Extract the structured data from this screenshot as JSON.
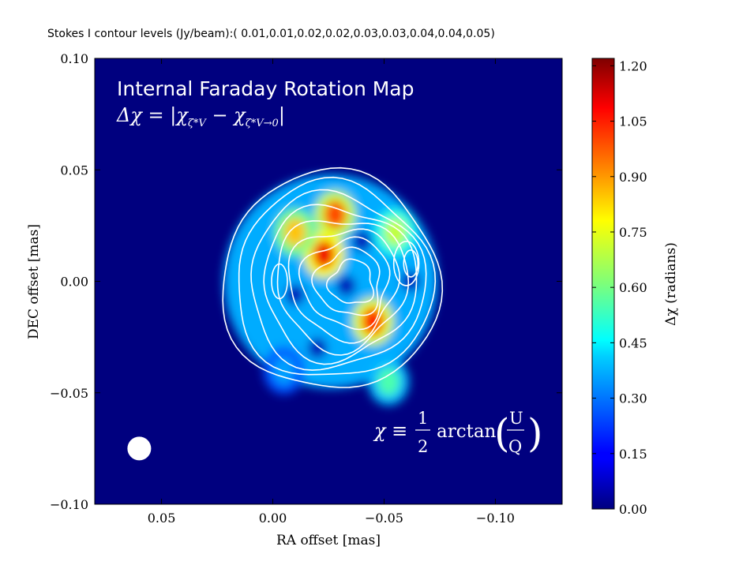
{
  "figure": {
    "top_label": "Stokes I contour levels (Jy/beam):( 0.01,0.01,0.02,0.02,0.03,0.03,0.04,0.04,0.05)"
  },
  "chart_data": {
    "type": "heatmap",
    "xlabel": "RA offset [mas]",
    "ylabel": "DEC offset [mas]",
    "xlim": [
      0.08,
      -0.13
    ],
    "ylim": [
      -0.1,
      0.1
    ],
    "xticks": [
      0.05,
      0.0,
      -0.05,
      -0.1
    ],
    "xtick_labels": [
      "0.05",
      "0.00",
      "−0.05",
      "−0.10"
    ],
    "yticks": [
      0.1,
      0.05,
      0.0,
      -0.05,
      -0.1
    ],
    "ytick_labels": [
      "0.10",
      "0.05",
      "0.00",
      "−0.05",
      "−0.10"
    ],
    "annotation_title": "Internal Faraday Rotation Map",
    "annotation_delta_lhs": "Δχ = |χ",
    "annotation_delta_sub1": "ζ*V",
    "annotation_delta_mid": " − χ",
    "annotation_delta_sub2": "ζ*V→0",
    "annotation_delta_end": "|",
    "formula_lhs": "χ ≡",
    "formula_num": "1",
    "formula_den": "2",
    "formula_func": "arctan",
    "formula_frac_num": "U",
    "formula_frac_den": "Q",
    "colormap": "jet",
    "background_color": "#00007f",
    "beam": {
      "x": 0.06,
      "y": -0.075
    },
    "colorbar": {
      "label": "Δχ (radians)",
      "range": [
        0.0,
        1.22
      ],
      "ticks": [
        0.0,
        0.15,
        0.3,
        0.45,
        0.6,
        0.75,
        0.9,
        1.05,
        1.2
      ],
      "tick_labels": [
        "0.00",
        "0.15",
        "0.30",
        "0.45",
        "0.60",
        "0.75",
        "0.90",
        "1.05",
        "1.20"
      ]
    },
    "contour_levels": [
      0.01,
      0.01,
      0.02,
      0.02,
      0.03,
      0.03,
      0.04,
      0.04,
      0.05
    ],
    "source_center": {
      "x": -0.026,
      "y": 0.0
    },
    "source_radius": 0.049,
    "features": [
      {
        "x": -0.028,
        "y": 0.03,
        "value": 1.0
      },
      {
        "x": -0.023,
        "y": 0.012,
        "value": 1.1
      },
      {
        "x": -0.045,
        "y": -0.018,
        "value": 1.05
      },
      {
        "x": -0.01,
        "y": 0.022,
        "value": 0.85
      },
      {
        "x": -0.055,
        "y": 0.022,
        "value": 0.7
      },
      {
        "x": -0.052,
        "y": -0.045,
        "value": 0.55
      },
      {
        "x": -0.005,
        "y": -0.04,
        "value": 0.35
      }
    ]
  }
}
